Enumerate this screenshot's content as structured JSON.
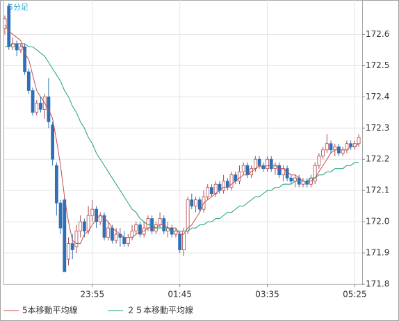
{
  "chart_data": {
    "type": "candlestick",
    "title": "5分足",
    "categories": [
      null,
      null,
      null,
      null,
      null,
      null,
      null,
      null,
      null,
      null,
      null,
      null,
      null,
      null,
      null,
      null,
      null,
      null,
      null,
      null,
      null,
      null,
      "23:55",
      null,
      null,
      null,
      null,
      null,
      null,
      null,
      null,
      null,
      null,
      null,
      null,
      null,
      null,
      null,
      null,
      null,
      null,
      null,
      null,
      null,
      "01:45",
      null,
      null,
      null,
      null,
      null,
      null,
      null,
      null,
      null,
      null,
      null,
      null,
      null,
      null,
      null,
      null,
      null,
      null,
      null,
      null,
      null,
      "03:35",
      null,
      null,
      null,
      null,
      null,
      null,
      null,
      null,
      null,
      null,
      null,
      null,
      null,
      null,
      null,
      null,
      null,
      null,
      null,
      null,
      null,
      "05:25",
      null
    ],
    "open": [
      172.62,
      172.69,
      172.56,
      172.57,
      172.55,
      172.56,
      172.48,
      172.42,
      172.35,
      172.38,
      172.36,
      172.4,
      172.31,
      172.18,
      172.06,
      172.07,
      171.88,
      171.93,
      171.92,
      171.97,
      172.0,
      171.97,
      172.02,
      172.04,
      172.0,
      172.02,
      171.95,
      171.98,
      171.94,
      171.96,
      171.95,
      171.93,
      171.95,
      171.97,
      171.99,
      171.96,
      171.98,
      172.01,
      171.97,
      171.99,
      172.01,
      171.97,
      171.98,
      171.96,
      171.96,
      171.91,
      171.97,
      172.07,
      172.05,
      172.07,
      172.04,
      172.08,
      172.11,
      172.09,
      172.12,
      172.1,
      172.13,
      172.11,
      172.15,
      172.13,
      172.16,
      172.18,
      172.15,
      172.17,
      172.2,
      172.18,
      172.17,
      172.2,
      172.17,
      172.18,
      172.15,
      172.17,
      172.14,
      172.13,
      172.14,
      172.12,
      172.13,
      172.12,
      172.13,
      172.18,
      172.21,
      172.23,
      172.25,
      172.23,
      172.24,
      172.22,
      172.23,
      172.25,
      172.24,
      172.25
    ],
    "high": [
      172.66,
      172.7,
      172.59,
      172.58,
      172.57,
      172.57,
      172.49,
      172.43,
      172.39,
      172.4,
      172.41,
      172.46,
      172.32,
      172.19,
      172.07,
      172.08,
      171.95,
      171.96,
      171.99,
      172.02,
      172.01,
      172.05,
      172.07,
      172.05,
      172.03,
      172.03,
      172.0,
      171.99,
      171.98,
      171.98,
      171.97,
      171.96,
      171.99,
      172.0,
      172.0,
      172.0,
      172.02,
      172.02,
      172.0,
      172.03,
      172.02,
      172.0,
      171.99,
      171.98,
      171.97,
      171.98,
      172.08,
      172.09,
      172.08,
      172.08,
      172.1,
      172.12,
      172.12,
      172.13,
      172.13,
      172.15,
      172.14,
      172.16,
      172.16,
      172.18,
      172.19,
      172.19,
      172.18,
      172.21,
      172.21,
      172.19,
      172.21,
      172.21,
      172.19,
      172.19,
      172.18,
      172.18,
      172.15,
      172.15,
      172.15,
      172.14,
      172.14,
      172.15,
      172.19,
      172.22,
      172.24,
      172.28,
      172.26,
      172.25,
      172.25,
      172.24,
      172.26,
      172.26,
      172.26,
      172.28
    ],
    "low": [
      172.6,
      172.55,
      172.55,
      172.53,
      172.54,
      172.47,
      172.41,
      172.34,
      172.34,
      172.35,
      172.33,
      172.3,
      172.18,
      172.02,
      171.96,
      171.84,
      171.86,
      171.88,
      171.9,
      171.95,
      171.95,
      171.96,
      172.0,
      171.98,
      171.99,
      171.94,
      171.94,
      171.93,
      171.93,
      171.92,
      171.92,
      171.92,
      171.94,
      171.96,
      171.95,
      171.95,
      171.97,
      171.96,
      171.96,
      171.98,
      171.96,
      171.95,
      171.95,
      171.95,
      171.9,
      171.89,
      171.96,
      172.04,
      172.03,
      172.03,
      172.03,
      172.07,
      172.08,
      172.08,
      172.09,
      172.09,
      172.1,
      172.1,
      172.12,
      172.12,
      172.15,
      172.14,
      172.14,
      172.16,
      172.17,
      172.16,
      172.16,
      172.16,
      172.15,
      172.14,
      172.13,
      172.13,
      172.12,
      172.11,
      172.11,
      172.11,
      172.11,
      172.11,
      172.12,
      172.17,
      172.2,
      172.22,
      172.22,
      172.21,
      172.21,
      172.21,
      172.22,
      172.23,
      172.23,
      172.24
    ],
    "close": [
      172.65,
      172.56,
      172.57,
      172.55,
      172.56,
      172.48,
      172.42,
      172.35,
      172.38,
      172.36,
      172.4,
      172.32,
      172.2,
      172.06,
      171.98,
      171.84,
      171.93,
      171.91,
      171.97,
      172.0,
      171.97,
      172.02,
      172.04,
      172.0,
      172.02,
      171.95,
      171.98,
      171.94,
      171.96,
      171.95,
      171.93,
      171.95,
      171.97,
      171.99,
      171.96,
      171.98,
      172.01,
      171.97,
      171.99,
      172.01,
      171.97,
      171.98,
      171.96,
      171.97,
      171.91,
      171.97,
      172.07,
      172.05,
      172.07,
      172.04,
      172.08,
      172.11,
      172.09,
      172.12,
      172.1,
      172.13,
      172.11,
      172.15,
      172.13,
      172.16,
      172.18,
      172.15,
      172.17,
      172.2,
      172.18,
      172.17,
      172.2,
      172.17,
      172.18,
      172.15,
      172.17,
      172.14,
      172.13,
      172.14,
      172.12,
      172.13,
      172.12,
      172.14,
      172.18,
      172.21,
      172.23,
      172.25,
      172.23,
      172.24,
      172.22,
      172.23,
      172.25,
      172.24,
      172.25,
      172.27
    ],
    "up_color": "#b04848",
    "down_color": "#2f6fb8",
    "series": [
      {
        "name": "5本移動平均線",
        "color": "#c0504d",
        "values": [
          172.63,
          172.61,
          172.6,
          172.59,
          172.58,
          172.54,
          172.52,
          172.47,
          172.42,
          172.4,
          172.38,
          172.36,
          172.33,
          172.26,
          172.18,
          172.08,
          172.0,
          171.94,
          171.93,
          171.93,
          171.96,
          171.97,
          171.99,
          172.01,
          172.02,
          172.01,
          172.0,
          171.98,
          171.97,
          171.96,
          171.95,
          171.95,
          171.95,
          171.96,
          171.97,
          171.97,
          171.98,
          171.98,
          171.98,
          171.99,
          171.99,
          171.98,
          171.98,
          171.98,
          171.96,
          171.96,
          171.98,
          171.99,
          172.01,
          172.03,
          172.06,
          172.07,
          172.08,
          172.09,
          172.1,
          172.11,
          172.11,
          172.12,
          172.13,
          172.14,
          172.15,
          172.15,
          172.16,
          172.17,
          172.18,
          172.17,
          172.18,
          172.18,
          172.18,
          172.17,
          172.17,
          172.16,
          172.15,
          172.15,
          172.14,
          172.13,
          172.13,
          172.13,
          172.14,
          172.16,
          172.18,
          172.2,
          172.22,
          172.23,
          172.23,
          172.23,
          172.23,
          172.24,
          172.24,
          172.25
        ]
      },
      {
        "name": "２５本移動平均線",
        "color": "#1a9e80",
        "values": [
          172.56,
          172.56,
          172.57,
          172.57,
          172.57,
          172.57,
          172.56,
          172.56,
          172.55,
          172.54,
          172.53,
          172.51,
          172.49,
          172.47,
          172.45,
          172.42,
          172.4,
          172.37,
          172.35,
          172.32,
          172.3,
          172.27,
          172.25,
          172.22,
          172.2,
          172.18,
          172.16,
          172.14,
          172.12,
          172.1,
          172.08,
          172.06,
          172.04,
          172.03,
          172.01,
          172.0,
          171.99,
          171.99,
          171.98,
          171.98,
          171.98,
          171.98,
          171.97,
          171.97,
          171.97,
          171.97,
          171.97,
          171.98,
          171.98,
          171.99,
          171.99,
          172.0,
          172.0,
          172.01,
          172.01,
          172.02,
          172.03,
          172.03,
          172.04,
          172.05,
          172.05,
          172.06,
          172.07,
          172.08,
          172.08,
          172.09,
          172.1,
          172.1,
          172.11,
          172.11,
          172.12,
          172.12,
          172.12,
          172.13,
          172.13,
          172.13,
          172.13,
          172.14,
          172.14,
          172.15,
          172.15,
          172.16,
          172.16,
          172.17,
          172.17,
          172.17,
          172.18,
          172.18,
          172.19,
          172.19
        ]
      }
    ],
    "ylim": [
      171.8,
      172.71
    ],
    "yticks": [
      171.8,
      171.9,
      {
        "value": 172,
        "label": "172.0"
      },
      172.1,
      172.2,
      172.3,
      172.4,
      172.5,
      172.6
    ],
    "grid": true
  }
}
